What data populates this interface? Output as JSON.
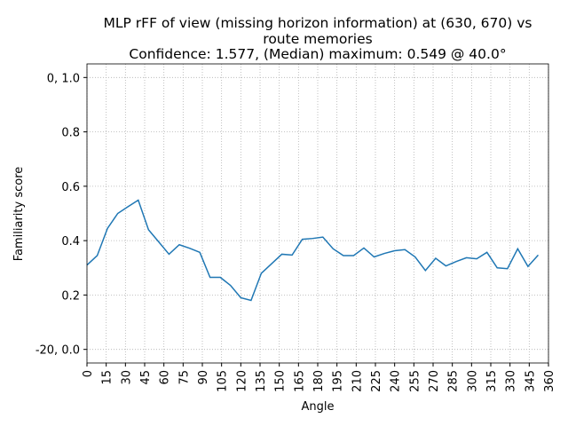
{
  "chart_data": {
    "type": "line",
    "title": [
      "MLP rFF of view (missing horizon information) at (630, 670) vs",
      "route memories",
      "Confidence: 1.577, (Median) maximum: 0.549 @ 40.0°"
    ],
    "x_label": "Angle",
    "y_label": "Familiarity score",
    "x": [
      0,
      8,
      16,
      24,
      32,
      40,
      48,
      56,
      64,
      72,
      80,
      88,
      96,
      104,
      112,
      120,
      128,
      136,
      144,
      152,
      160,
      168,
      176,
      184,
      192,
      200,
      208,
      216,
      224,
      232,
      240,
      248,
      256,
      264,
      272,
      280,
      288,
      296,
      304,
      312,
      320,
      328,
      336,
      344,
      352
    ],
    "series": [
      {
        "name": "familiarity",
        "color": "#1f77b4",
        "values": [
          0.31,
          0.345,
          0.445,
          0.5,
          0.525,
          0.549,
          0.44,
          0.395,
          0.35,
          0.385,
          0.372,
          0.357,
          0.265,
          0.265,
          0.235,
          0.19,
          0.18,
          0.28,
          0.315,
          0.35,
          0.347,
          0.405,
          0.408,
          0.413,
          0.37,
          0.345,
          0.345,
          0.373,
          0.34,
          0.353,
          0.363,
          0.367,
          0.34,
          0.29,
          0.335,
          0.307,
          0.323,
          0.337,
          0.333,
          0.357,
          0.3,
          0.297,
          0.37,
          0.305,
          0.347
        ]
      }
    ],
    "xlim": [
      0,
      360
    ],
    "ylim": [
      -0.05,
      1.05
    ],
    "xticks": [
      0,
      15,
      30,
      45,
      60,
      75,
      90,
      105,
      120,
      135,
      150,
      165,
      180,
      195,
      210,
      225,
      240,
      255,
      270,
      285,
      300,
      315,
      330,
      345,
      360
    ],
    "yticks": [
      {
        "value": 0.0,
        "label": "-20, 0.0"
      },
      {
        "value": 0.2,
        "label": "0.2"
      },
      {
        "value": 0.4,
        "label": "0.4"
      },
      {
        "value": 0.6,
        "label": "0.6"
      },
      {
        "value": 0.8,
        "label": "0.8"
      },
      {
        "value": 1.0,
        "label": "0, 1.0"
      }
    ],
    "grid": true
  }
}
